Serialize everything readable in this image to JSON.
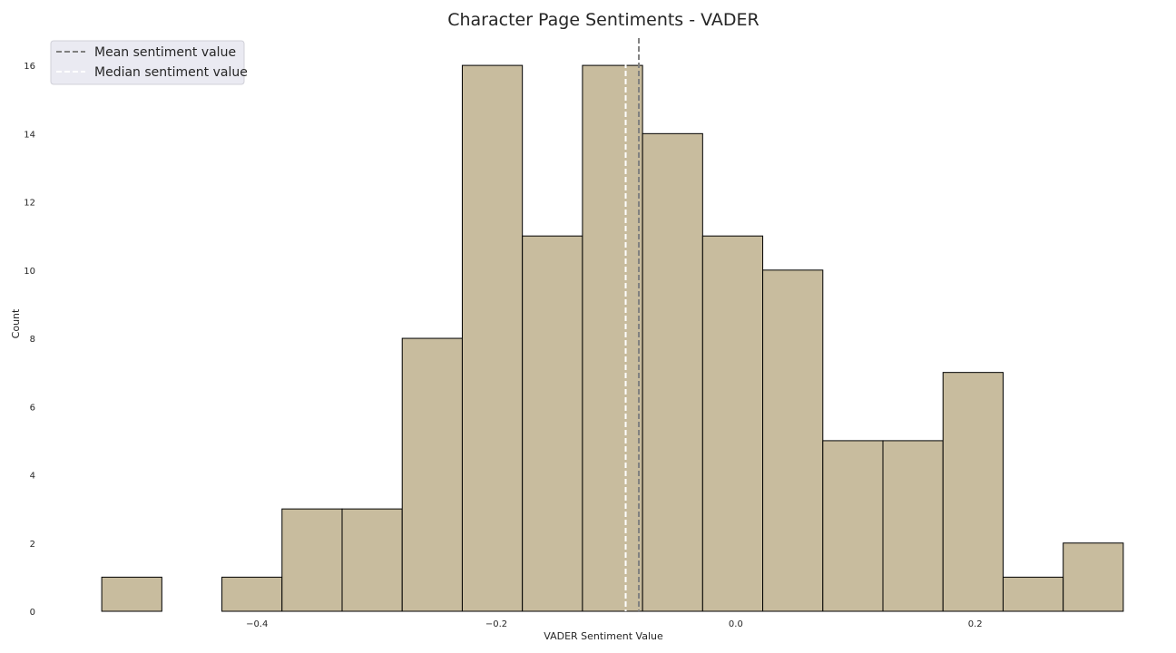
{
  "chart_data": {
    "type": "bar",
    "subtype": "histogram",
    "title": "Character Page Sentiments - VADER",
    "xlabel": "VADER Sentiment Value",
    "ylabel": "Count",
    "xticks": [
      -0.4,
      -0.2,
      0.0,
      0.2
    ],
    "xtick_labels": [
      "−0.4",
      "−0.2",
      "0.0",
      "0.2"
    ],
    "yticks": [
      0,
      2,
      4,
      6,
      8,
      10,
      12,
      14,
      16
    ],
    "ytick_labels": [
      "0",
      "2",
      "4",
      "6",
      "8",
      "10",
      "12",
      "14",
      "16"
    ],
    "xlim": [
      -0.573,
      0.345
    ],
    "ylim": [
      0,
      16.8
    ],
    "bin_edges": [
      -0.5297,
      -0.4795,
      -0.4293,
      -0.3791,
      -0.3289,
      -0.2787,
      -0.2285,
      -0.1783,
      -0.1281,
      -0.0779,
      -0.0277,
      0.0225,
      0.0727,
      0.1229,
      0.1731,
      0.2233,
      0.2735,
      0.3237
    ],
    "counts": [
      1,
      0,
      1,
      3,
      3,
      8,
      16,
      11,
      16,
      14,
      11,
      10,
      5,
      5,
      7,
      1,
      2
    ],
    "bar_color": "#c8bc9e",
    "edge_color": "#000000",
    "reference_lines": [
      {
        "name": "Mean sentiment value",
        "x": -0.081,
        "color": "#808080",
        "style": "dashed"
      },
      {
        "name": "Median sentiment value",
        "x": -0.092,
        "color": "#ffffff",
        "style": "dashed"
      }
    ],
    "legend_placement": "top-left",
    "legend_background": "#eaeaf2",
    "grid": false
  }
}
